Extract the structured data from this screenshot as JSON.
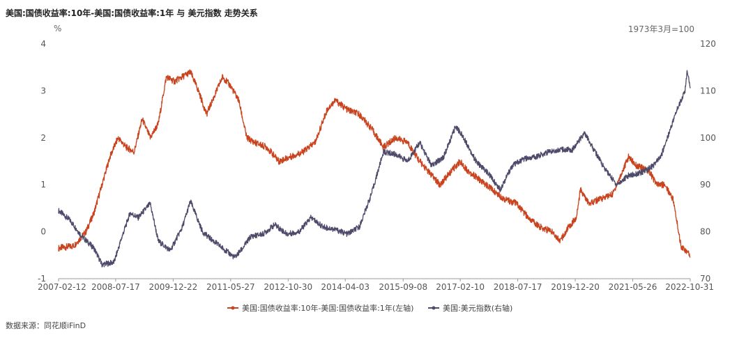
{
  "title": "美国:国债收益率:10年-美国:国债收益率:1年 与 美元指数 走势关系",
  "source": "数据来源：同花顺iFinD",
  "chart_data": {
    "type": "line",
    "left_axis": {
      "unit_label": "%",
      "range": [
        -1,
        4
      ],
      "ticks": [
        "4",
        "3",
        "2",
        "1",
        "0",
        "-1"
      ]
    },
    "right_axis": {
      "unit_label": "1973年3月=100",
      "range": [
        70,
        120
      ],
      "ticks": [
        "120",
        "110",
        "100",
        "90",
        "80",
        "70"
      ]
    },
    "x_axis": {
      "range_years": [
        2007.12,
        2022.83
      ],
      "ticks": [
        {
          "label": "2007-02-12",
          "t": 2007.12
        },
        {
          "label": "2008-07-17",
          "t": 2008.54
        },
        {
          "label": "2009-12-22",
          "t": 2009.97
        },
        {
          "label": "2011-05-27",
          "t": 2011.4
        },
        {
          "label": "2012-10-30",
          "t": 2012.83
        },
        {
          "label": "2014-04-03",
          "t": 2014.25
        },
        {
          "label": "2015-09-08",
          "t": 2015.69
        },
        {
          "label": "2017-02-10",
          "t": 2017.11
        },
        {
          "label": "2018-07-17",
          "t": 2018.54
        },
        {
          "label": "2019-12-20",
          "t": 2019.97
        },
        {
          "label": "2021-05-26",
          "t": 2021.4
        },
        {
          "label": "2022-10-31",
          "t": 2022.83
        }
      ]
    },
    "series": [
      {
        "name": "美国:国债收益率:10年-美国:国债收益率:1年(左轴)",
        "axis": "left",
        "color": "#c9431e",
        "points": [
          [
            2007.12,
            -0.35
          ],
          [
            2007.5,
            -0.3
          ],
          [
            2007.8,
            0.0
          ],
          [
            2008.0,
            0.4
          ],
          [
            2008.2,
            1.0
          ],
          [
            2008.4,
            1.6
          ],
          [
            2008.6,
            2.0
          ],
          [
            2008.8,
            1.8
          ],
          [
            2009.0,
            1.7
          ],
          [
            2009.2,
            2.4
          ],
          [
            2009.4,
            2.0
          ],
          [
            2009.6,
            2.3
          ],
          [
            2009.8,
            3.3
          ],
          [
            2010.0,
            3.2
          ],
          [
            2010.2,
            3.3
          ],
          [
            2010.4,
            3.4
          ],
          [
            2010.6,
            3.0
          ],
          [
            2010.8,
            2.5
          ],
          [
            2011.0,
            2.9
          ],
          [
            2011.2,
            3.3
          ],
          [
            2011.4,
            3.1
          ],
          [
            2011.6,
            2.8
          ],
          [
            2011.8,
            2.0
          ],
          [
            2012.0,
            1.9
          ],
          [
            2012.3,
            1.8
          ],
          [
            2012.6,
            1.5
          ],
          [
            2012.9,
            1.6
          ],
          [
            2013.2,
            1.7
          ],
          [
            2013.5,
            1.9
          ],
          [
            2013.8,
            2.6
          ],
          [
            2014.0,
            2.8
          ],
          [
            2014.3,
            2.6
          ],
          [
            2014.6,
            2.5
          ],
          [
            2014.9,
            2.2
          ],
          [
            2015.2,
            1.8
          ],
          [
            2015.5,
            2.0
          ],
          [
            2015.8,
            1.9
          ],
          [
            2016.1,
            1.5
          ],
          [
            2016.4,
            1.2
          ],
          [
            2016.6,
            1.0
          ],
          [
            2016.9,
            1.3
          ],
          [
            2017.1,
            1.5
          ],
          [
            2017.3,
            1.3
          ],
          [
            2017.6,
            1.1
          ],
          [
            2017.9,
            0.9
          ],
          [
            2018.2,
            0.7
          ],
          [
            2018.5,
            0.6
          ],
          [
            2018.8,
            0.3
          ],
          [
            2019.1,
            0.1
          ],
          [
            2019.4,
            0.0
          ],
          [
            2019.6,
            -0.2
          ],
          [
            2019.8,
            0.1
          ],
          [
            2020.0,
            0.3
          ],
          [
            2020.1,
            0.9
          ],
          [
            2020.3,
            0.6
          ],
          [
            2020.6,
            0.7
          ],
          [
            2020.9,
            0.8
          ],
          [
            2021.1,
            1.2
          ],
          [
            2021.3,
            1.6
          ],
          [
            2021.5,
            1.4
          ],
          [
            2021.8,
            1.3
          ],
          [
            2022.0,
            1.0
          ],
          [
            2022.2,
            1.0
          ],
          [
            2022.4,
            0.7
          ],
          [
            2022.5,
            0.2
          ],
          [
            2022.6,
            -0.3
          ],
          [
            2022.7,
            -0.4
          ],
          [
            2022.83,
            -0.5
          ]
        ]
      },
      {
        "name": "美国:美元指数(右轴)",
        "axis": "right",
        "color": "#4d4a6a",
        "points": [
          [
            2007.12,
            84.5
          ],
          [
            2007.4,
            82.5
          ],
          [
            2007.7,
            79.0
          ],
          [
            2008.0,
            76.5
          ],
          [
            2008.2,
            73.0
          ],
          [
            2008.5,
            73.5
          ],
          [
            2008.7,
            79.0
          ],
          [
            2008.9,
            84.0
          ],
          [
            2009.1,
            83.0
          ],
          [
            2009.4,
            86.0
          ],
          [
            2009.6,
            78.0
          ],
          [
            2009.9,
            76.0
          ],
          [
            2010.2,
            81.0
          ],
          [
            2010.4,
            86.5
          ],
          [
            2010.7,
            80.0
          ],
          [
            2010.9,
            78.5
          ],
          [
            2011.2,
            76.5
          ],
          [
            2011.5,
            74.5
          ],
          [
            2011.7,
            76.5
          ],
          [
            2011.9,
            79.0
          ],
          [
            2012.2,
            79.5
          ],
          [
            2012.5,
            81.5
          ],
          [
            2012.8,
            79.5
          ],
          [
            2013.1,
            80.0
          ],
          [
            2013.4,
            83.0
          ],
          [
            2013.7,
            81.0
          ],
          [
            2014.0,
            80.5
          ],
          [
            2014.3,
            79.5
          ],
          [
            2014.6,
            81.0
          ],
          [
            2014.9,
            88.0
          ],
          [
            2015.2,
            97.0
          ],
          [
            2015.5,
            96.5
          ],
          [
            2015.8,
            95.0
          ],
          [
            2016.1,
            99.0
          ],
          [
            2016.4,
            94.0
          ],
          [
            2016.7,
            96.0
          ],
          [
            2017.0,
            102.5
          ],
          [
            2017.2,
            100.0
          ],
          [
            2017.5,
            95.0
          ],
          [
            2017.8,
            92.5
          ],
          [
            2018.1,
            89.0
          ],
          [
            2018.4,
            94.0
          ],
          [
            2018.7,
            95.5
          ],
          [
            2019.0,
            96.0
          ],
          [
            2019.3,
            97.0
          ],
          [
            2019.6,
            97.5
          ],
          [
            2019.9,
            97.5
          ],
          [
            2020.2,
            101.0
          ],
          [
            2020.4,
            98.0
          ],
          [
            2020.7,
            93.5
          ],
          [
            2021.0,
            90.0
          ],
          [
            2021.3,
            92.0
          ],
          [
            2021.6,
            92.5
          ],
          [
            2021.9,
            94.0
          ],
          [
            2022.1,
            96.0
          ],
          [
            2022.3,
            101.0
          ],
          [
            2022.5,
            106.0
          ],
          [
            2022.7,
            110.0
          ],
          [
            2022.75,
            114.0
          ],
          [
            2022.83,
            111.0
          ]
        ]
      }
    ]
  }
}
